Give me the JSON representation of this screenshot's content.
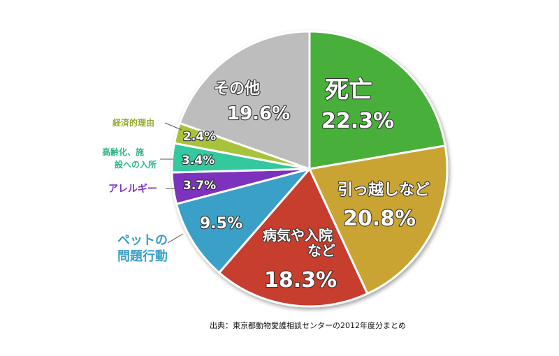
{
  "chart_data": {
    "type": "pie",
    "title": "",
    "start": "top",
    "direction": "clockwise",
    "slices": [
      {
        "name": "死亡",
        "value": 22.3,
        "value_label": "22.3%",
        "color": "#4aaf3a"
      },
      {
        "name": "引っ越しなど",
        "value": 20.8,
        "value_label": "20.8%",
        "color": "#c9a431"
      },
      {
        "name": "病気や入院など",
        "value": 18.3,
        "value_label": "18.3%",
        "color": "#c73e2e"
      },
      {
        "name": "ペットの問題行動",
        "value": 9.5,
        "value_label": "9.5%",
        "color": "#3aa0c8"
      },
      {
        "name": "アレルギー",
        "value": 3.7,
        "value_label": "3.7%",
        "color": "#7b33bd"
      },
      {
        "name": "高齢化、施設への入所",
        "value": 3.4,
        "value_label": "3.4%",
        "color": "#36c79e"
      },
      {
        "name": "経済的理由",
        "value": 2.4,
        "value_label": "2.4%",
        "color": "#a7c23b"
      },
      {
        "name": "その他",
        "value": 19.6,
        "value_label": "19.6%",
        "color": "#bdbdbd"
      }
    ],
    "source": "出典：東京都動物愛護相談センターの2012年度分まとめ"
  }
}
